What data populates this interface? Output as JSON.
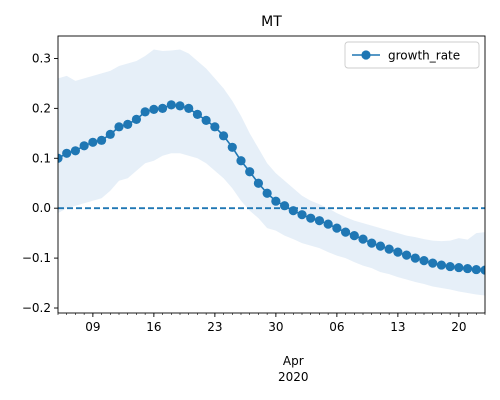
{
  "chart_data": {
    "type": "line",
    "title": "MT",
    "xlabel": "",
    "ylabel": "",
    "x_range": [
      "2020-03-05",
      "2020-04-23"
    ],
    "y_range": [
      -0.21,
      0.345
    ],
    "y_ticks": [
      -0.2,
      -0.1,
      0.0,
      0.1,
      0.2,
      0.3
    ],
    "y_tick_labels": [
      "−0.2",
      "−0.1",
      "0.0",
      "0.1",
      "0.2",
      "0.3"
    ],
    "x_major_ticks": [
      "2020-03-09",
      "2020-03-16",
      "2020-03-23",
      "2020-03-30",
      "2020-04-06",
      "2020-04-13",
      "2020-04-20"
    ],
    "x_tick_labels": [
      "09",
      "16",
      "23",
      "30",
      "06",
      "13",
      "20"
    ],
    "month_label": "Apr",
    "year_label": "2020",
    "reference_line": {
      "y": 0.0,
      "style": "dashed",
      "color": "#1f77b4"
    },
    "legend": {
      "location": "top-right",
      "entries": [
        "growth_rate"
      ]
    },
    "grid": false,
    "colors": {
      "series": "#1f77b4",
      "band": "#dce8f5"
    },
    "series": [
      {
        "name": "growth_rate",
        "marker": "circle",
        "x": [
          "2020-03-05",
          "2020-03-06",
          "2020-03-07",
          "2020-03-08",
          "2020-03-09",
          "2020-03-10",
          "2020-03-11",
          "2020-03-12",
          "2020-03-13",
          "2020-03-14",
          "2020-03-15",
          "2020-03-16",
          "2020-03-17",
          "2020-03-18",
          "2020-03-19",
          "2020-03-20",
          "2020-03-21",
          "2020-03-22",
          "2020-03-23",
          "2020-03-24",
          "2020-03-25",
          "2020-03-26",
          "2020-03-27",
          "2020-03-28",
          "2020-03-29",
          "2020-03-30",
          "2020-03-31",
          "2020-04-01",
          "2020-04-02",
          "2020-04-03",
          "2020-04-04",
          "2020-04-05",
          "2020-04-06",
          "2020-04-07",
          "2020-04-08",
          "2020-04-09",
          "2020-04-10",
          "2020-04-11",
          "2020-04-12",
          "2020-04-13",
          "2020-04-14",
          "2020-04-15",
          "2020-04-16",
          "2020-04-17",
          "2020-04-18",
          "2020-04-19",
          "2020-04-20",
          "2020-04-21",
          "2020-04-22",
          "2020-04-23"
        ],
        "values": [
          0.1,
          0.11,
          0.115,
          0.125,
          0.132,
          0.136,
          0.148,
          0.163,
          0.168,
          0.178,
          0.193,
          0.198,
          0.2,
          0.207,
          0.205,
          0.2,
          0.188,
          0.176,
          0.163,
          0.145,
          0.122,
          0.095,
          0.073,
          0.05,
          0.03,
          0.014,
          0.005,
          -0.005,
          -0.013,
          -0.02,
          -0.025,
          -0.032,
          -0.04,
          -0.048,
          -0.055,
          -0.062,
          -0.07,
          -0.076,
          -0.082,
          -0.088,
          -0.094,
          -0.1,
          -0.105,
          -0.11,
          -0.114,
          -0.117,
          -0.119,
          -0.121,
          -0.123,
          -0.124
        ],
        "upper": [
          0.26,
          0.265,
          0.255,
          0.26,
          0.265,
          0.27,
          0.275,
          0.285,
          0.29,
          0.295,
          0.305,
          0.318,
          0.315,
          0.316,
          0.318,
          0.31,
          0.295,
          0.28,
          0.26,
          0.24,
          0.215,
          0.185,
          0.15,
          0.12,
          0.09,
          0.07,
          0.055,
          0.04,
          0.025,
          0.015,
          0.008,
          0.0,
          -0.01,
          -0.018,
          -0.025,
          -0.03,
          -0.035,
          -0.04,
          -0.045,
          -0.05,
          -0.055,
          -0.058,
          -0.062,
          -0.065,
          -0.066,
          -0.065,
          -0.06,
          -0.063,
          -0.05,
          -0.048
        ],
        "lower": [
          -0.01,
          0.0,
          0.005,
          0.01,
          0.015,
          0.02,
          0.035,
          0.055,
          0.06,
          0.075,
          0.09,
          0.095,
          0.105,
          0.11,
          0.11,
          0.105,
          0.1,
          0.09,
          0.075,
          0.06,
          0.04,
          0.015,
          -0.005,
          -0.02,
          -0.04,
          -0.045,
          -0.055,
          -0.062,
          -0.07,
          -0.075,
          -0.08,
          -0.088,
          -0.095,
          -0.1,
          -0.108,
          -0.115,
          -0.12,
          -0.128,
          -0.132,
          -0.138,
          -0.143,
          -0.148,
          -0.152,
          -0.157,
          -0.16,
          -0.163,
          -0.167,
          -0.17,
          -0.173,
          -0.175
        ]
      }
    ]
  }
}
